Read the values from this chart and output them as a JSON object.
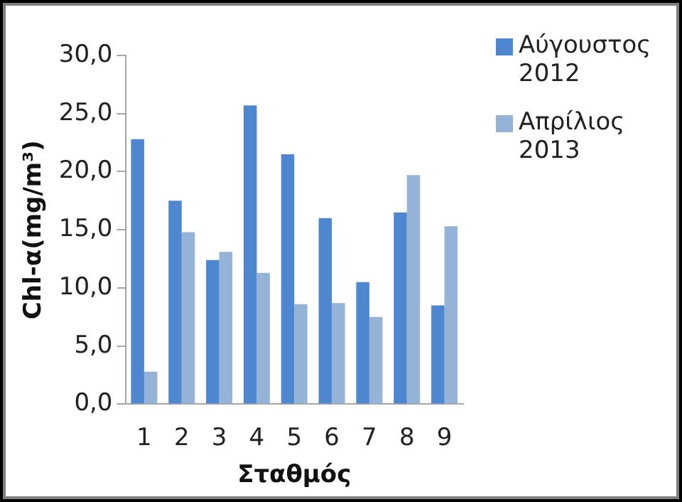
{
  "chart_data": {
    "type": "bar",
    "xlabel": "Σταθμός",
    "ylabel": "Chl-α(mg/m³)",
    "categories": [
      "1",
      "2",
      "3",
      "4",
      "5",
      "6",
      "7",
      "8",
      "9"
    ],
    "series": [
      {
        "name": "Αύγουστος 2012",
        "color": "#4f86d0",
        "values": [
          22.8,
          17.5,
          12.4,
          25.7,
          21.5,
          16.0,
          10.5,
          16.5,
          8.5
        ]
      },
      {
        "name": "Απρίλιος 2013",
        "color": "#95b3d7",
        "values": [
          2.8,
          14.8,
          13.1,
          11.3,
          8.6,
          8.7,
          7.5,
          19.7,
          15.3
        ]
      }
    ],
    "ylim": [
      0,
      30
    ],
    "yticks": [
      {
        "value": 0,
        "label": "0,0"
      },
      {
        "value": 5,
        "label": "5,0"
      },
      {
        "value": 10,
        "label": "10,0"
      },
      {
        "value": 15,
        "label": "15,0"
      },
      {
        "value": 20,
        "label": "20,0"
      },
      {
        "value": 25,
        "label": "25,0"
      },
      {
        "value": 30,
        "label": "30,0"
      }
    ],
    "grid": false,
    "legend": "right"
  }
}
